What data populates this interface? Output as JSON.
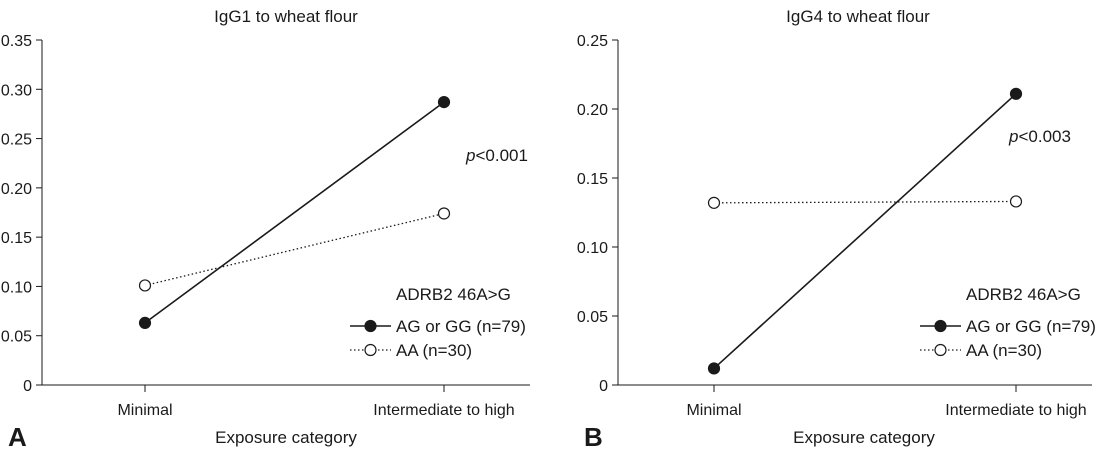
{
  "chart_data": [
    {
      "type": "line",
      "panel_label": "A",
      "title": "IgG1 to wheat flour",
      "xlabel": "Exposure category",
      "ylabel": "",
      "categories": [
        "Minimal",
        "Intermediate to high"
      ],
      "ylim": [
        0,
        0.35
      ],
      "yticks": [
        "0",
        "0.05",
        "0.10",
        "0.15",
        "0.20",
        "0.25",
        "0.30",
        "0.35"
      ],
      "series": [
        {
          "name": "AG or GG (n=79)",
          "values": [
            0.063,
            0.287
          ],
          "marker": "filled-circle",
          "line": "solid"
        },
        {
          "name": "AA (n=30)",
          "values": [
            0.101,
            0.174
          ],
          "marker": "open-circle",
          "line": "dotted"
        }
      ],
      "annotation": {
        "italic": "p",
        "rest": "<0.001"
      },
      "legend_title": "ADRB2 46A>G",
      "legend_position": "right"
    },
    {
      "type": "line",
      "panel_label": "B",
      "title": "IgG4 to wheat flour",
      "xlabel": "Exposure category",
      "ylabel": "",
      "categories": [
        "Minimal",
        "Intermediate to high"
      ],
      "ylim": [
        0,
        0.25
      ],
      "yticks": [
        "0",
        "0.05",
        "0.10",
        "0.15",
        "0.20",
        "0.25"
      ],
      "series": [
        {
          "name": "AG or GG (n=79)",
          "values": [
            0.012,
            0.211
          ],
          "marker": "filled-circle",
          "line": "solid"
        },
        {
          "name": "AA (n=30)",
          "values": [
            0.132,
            0.133
          ],
          "marker": "open-circle",
          "line": "dotted"
        }
      ],
      "annotation": {
        "italic": "p",
        "rest": "<0.003"
      },
      "legend_title": "ADRB2 46A>G",
      "legend_position": "right"
    }
  ]
}
